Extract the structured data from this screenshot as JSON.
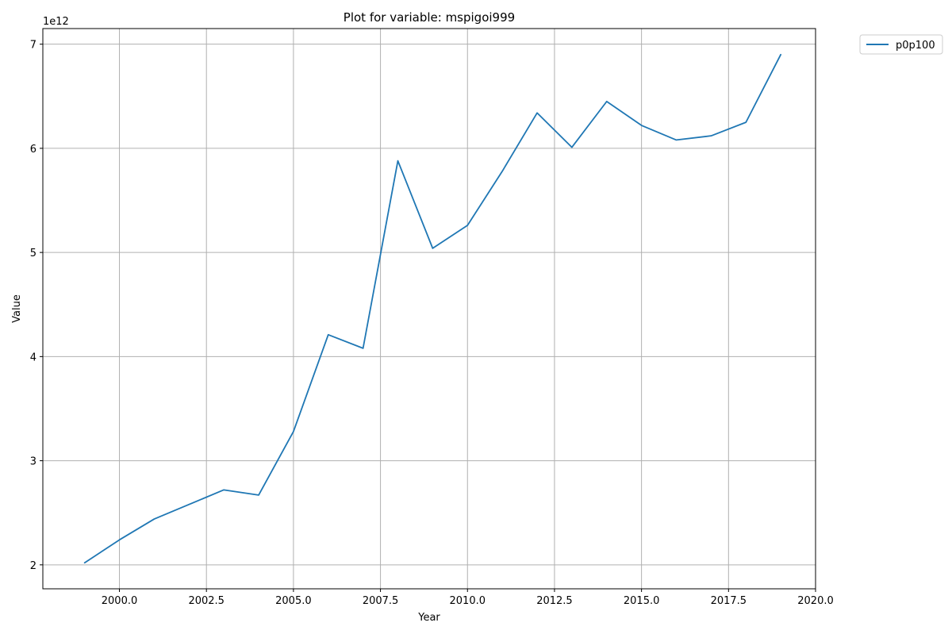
{
  "chart_data": {
    "type": "line",
    "title": "Plot for variable: mspigoi999",
    "xlabel": "Year",
    "ylabel": "Value",
    "y_offset_label": "1e12",
    "xlim": [
      1997.8,
      2020.0
    ],
    "ylim": [
      1.77,
      7.15
    ],
    "x_ticks": [
      2000.0,
      2002.5,
      2005.0,
      2007.5,
      2010.0,
      2012.5,
      2015.0,
      2017.5,
      2020.0
    ],
    "x_tick_labels": [
      "2000.0",
      "2002.5",
      "2005.0",
      "2007.5",
      "2010.0",
      "2012.5",
      "2015.0",
      "2017.5",
      "2020.0"
    ],
    "y_ticks": [
      2,
      3,
      4,
      5,
      6,
      7
    ],
    "y_tick_labels": [
      "2",
      "3",
      "4",
      "5",
      "6",
      "7"
    ],
    "y_unit_multiplier": 1000000000000.0,
    "grid": true,
    "legend_position": "outside top-right",
    "series": [
      {
        "name": "p0p100",
        "color": "#1f77b4",
        "x": [
          1999,
          2000,
          2001,
          2002,
          2003,
          2004,
          2005,
          2006,
          2007,
          2008,
          2009,
          2010,
          2011,
          2012,
          2013,
          2014,
          2015,
          2016,
          2017,
          2018,
          2019
        ],
        "y": [
          2.02,
          2.24,
          2.44,
          2.58,
          2.72,
          2.67,
          3.28,
          4.21,
          4.08,
          5.88,
          5.04,
          5.26,
          5.78,
          6.34,
          6.01,
          6.45,
          6.22,
          6.08,
          6.12,
          6.25,
          6.9
        ]
      }
    ]
  }
}
